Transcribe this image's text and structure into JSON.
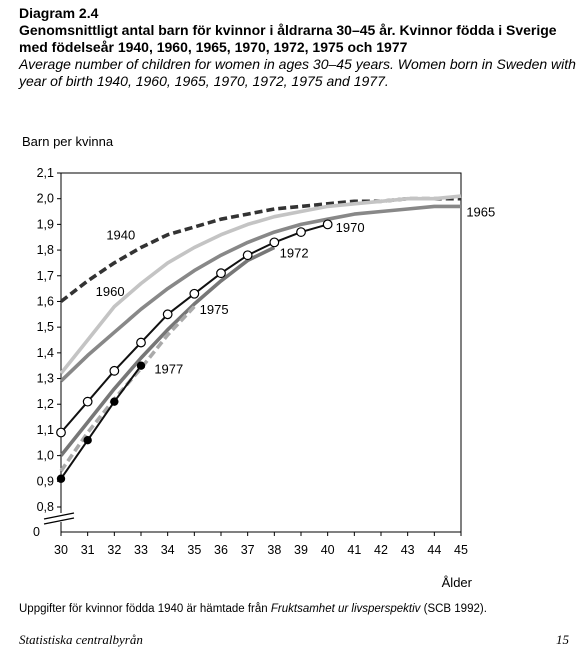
{
  "header": {
    "diagram_label": "Diagram 2.4",
    "title_sv": "Genomsnittligt antal barn för kvinnor i åldrarna 30–45 år. Kvinnor födda i Sverige med födelseår 1940, 1960, 1965, 1970, 1972, 1975 och 1977",
    "title_en": "Average number of children for women in ages 30–45 years. Women born in Sweden with year of birth 1940, 1960, 1965, 1970, 1972, 1975 and 1977."
  },
  "footer": {
    "note_prefix": "Uppgifter för kvinnor födda 1940 är hämtade från ",
    "note_source": "Fruktsamhet ur livsperspektiv",
    "note_suffix": " (SCB 1992).",
    "publisher": "Statistiska centralbyrån",
    "page_number": "15"
  },
  "chart_data": {
    "type": "line",
    "ylabel": "Barn per kvinna",
    "xlabel": "Ålder",
    "x_ticks": [
      "30",
      "31",
      "32",
      "33",
      "34",
      "35",
      "36",
      "37",
      "38",
      "39",
      "40",
      "41",
      "42",
      "43",
      "44",
      "45"
    ],
    "y_ticks": [
      "0,8",
      "0,9",
      "1,0",
      "1,1",
      "1,2",
      "1,3",
      "1,4",
      "1,5",
      "1,6",
      "1,7",
      "1,8",
      "1,9",
      "2,0",
      "2,1"
    ],
    "y_zero_label": "0",
    "xlim": [
      30,
      45
    ],
    "ylim": [
      0.8,
      2.1
    ],
    "y_axis_break": true,
    "grid": false,
    "series": [
      {
        "name": "1940",
        "style": "dashed",
        "color": "#333333",
        "marker": "none",
        "x": [
          30,
          31,
          32,
          33,
          34,
          35,
          36,
          37,
          38,
          39,
          40,
          41,
          42,
          43,
          44,
          45
        ],
        "y": [
          1.6,
          1.68,
          1.75,
          1.81,
          1.86,
          1.89,
          1.92,
          1.94,
          1.96,
          1.97,
          1.98,
          1.99,
          1.99,
          2.0,
          2.0,
          2.0
        ]
      },
      {
        "name": "1960",
        "style": "solid",
        "color": "#c4c4c4",
        "marker": "none",
        "x": [
          30,
          31,
          32,
          33,
          34,
          35,
          36,
          37,
          38,
          39,
          40,
          41,
          42,
          43,
          44,
          45
        ],
        "y": [
          1.32,
          1.45,
          1.58,
          1.67,
          1.75,
          1.81,
          1.86,
          1.9,
          1.93,
          1.95,
          1.97,
          1.98,
          1.99,
          2.0,
          2.0,
          2.01
        ]
      },
      {
        "name": "1965",
        "style": "solid",
        "color": "#888888",
        "marker": "none",
        "x": [
          30,
          31,
          32,
          33,
          34,
          35,
          36,
          37,
          38,
          39,
          40,
          41,
          42,
          43,
          44,
          45
        ],
        "y": [
          1.29,
          1.39,
          1.48,
          1.57,
          1.65,
          1.72,
          1.78,
          1.83,
          1.87,
          1.9,
          1.92,
          1.94,
          1.95,
          1.96,
          1.97,
          1.97
        ]
      },
      {
        "name": "1970",
        "style": "solid",
        "color": "#111111",
        "marker": "open-circle",
        "x": [
          30,
          31,
          32,
          33,
          34,
          35,
          36,
          37,
          38,
          39,
          40
        ],
        "y": [
          1.09,
          1.21,
          1.33,
          1.44,
          1.55,
          1.63,
          1.71,
          1.78,
          1.83,
          1.87,
          1.9
        ]
      },
      {
        "name": "1972",
        "style": "solid",
        "color": "#777777",
        "marker": "none",
        "x": [
          30,
          31,
          32,
          33,
          34,
          35,
          36,
          37,
          38
        ],
        "y": [
          1.0,
          1.13,
          1.26,
          1.38,
          1.49,
          1.59,
          1.68,
          1.76,
          1.81
        ]
      },
      {
        "name": "1975",
        "style": "dashed",
        "color": "#aaaaaa",
        "marker": "none",
        "x": [
          30,
          31,
          32,
          33,
          34,
          35
        ],
        "y": [
          0.94,
          1.09,
          1.22,
          1.34,
          1.47,
          1.58
        ]
      },
      {
        "name": "1977",
        "style": "solid",
        "color": "#111111",
        "marker": "filled-circle",
        "x": [
          30,
          31,
          32,
          33
        ],
        "y": [
          0.91,
          1.06,
          1.21,
          1.35
        ]
      }
    ],
    "labels": [
      {
        "text": "1940",
        "x": 31.7,
        "y": 1.86
      },
      {
        "text": "1960",
        "x": 31.3,
        "y": 1.64
      },
      {
        "text": "1965",
        "x": 45.2,
        "y": 1.95
      },
      {
        "text": "1970",
        "x": 40.3,
        "y": 1.89
      },
      {
        "text": "1972",
        "x": 38.2,
        "y": 1.79
      },
      {
        "text": "1975",
        "x": 35.2,
        "y": 1.57
      },
      {
        "text": "1977",
        "x": 33.5,
        "y": 1.34
      }
    ]
  }
}
